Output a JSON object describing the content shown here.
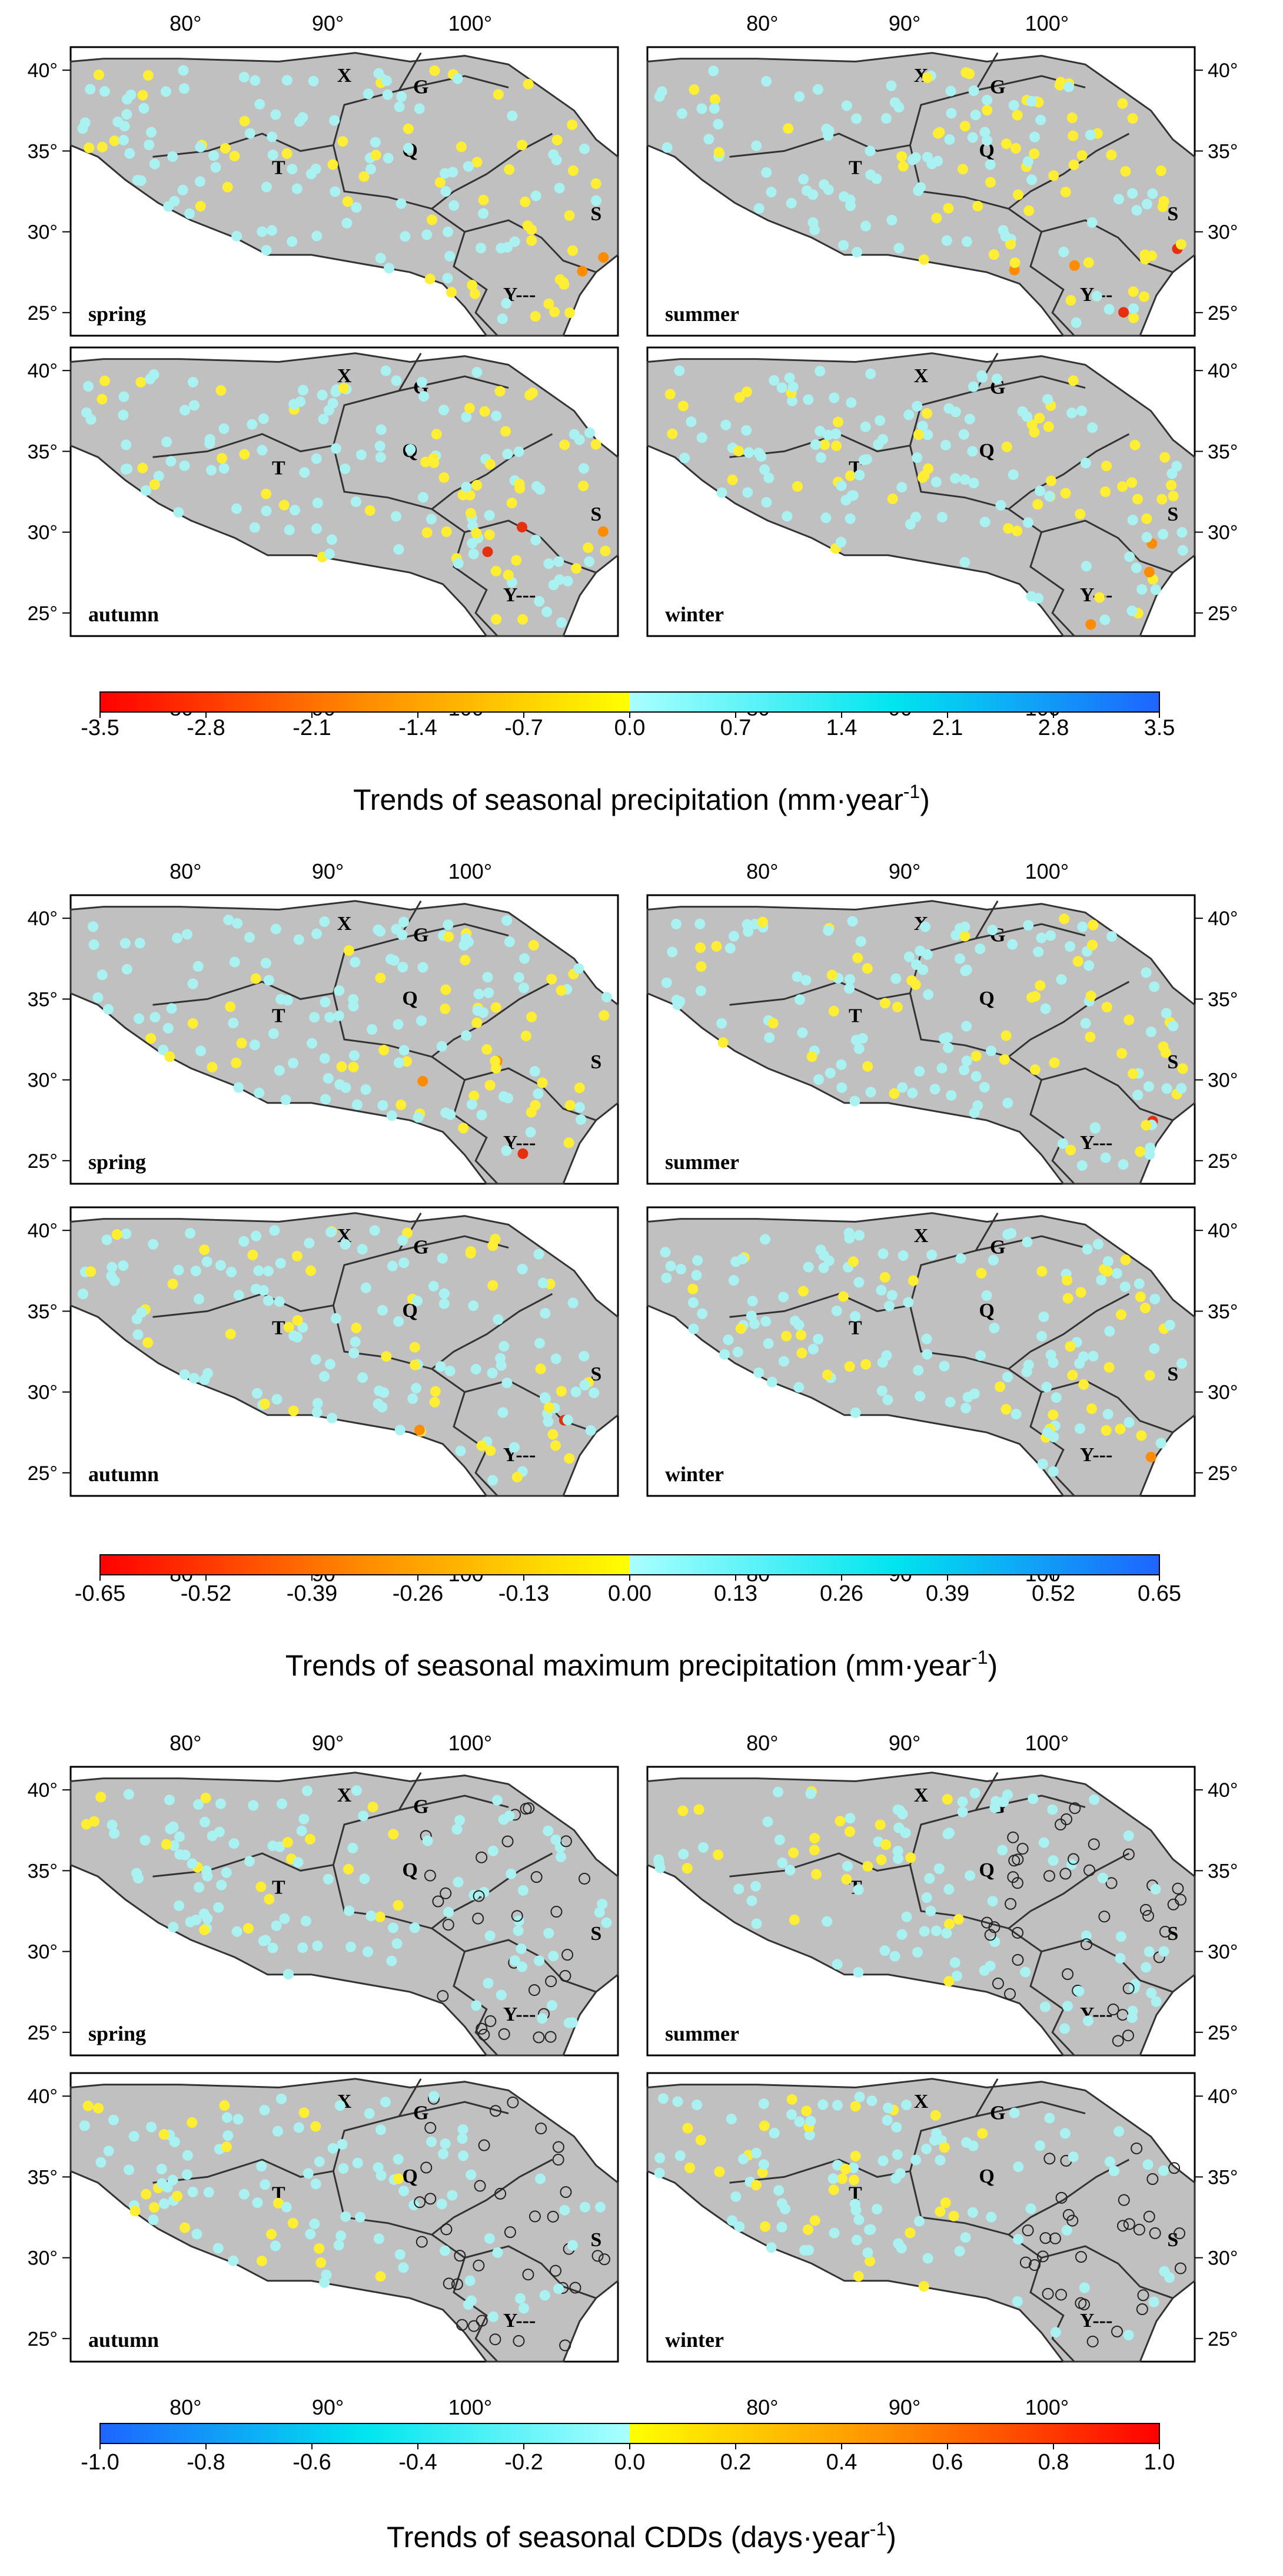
{
  "map_labels": {
    "X": "X",
    "G": "G",
    "Q": "Q",
    "T": "T",
    "S": "S",
    "Y": "Y---"
  },
  "lon_ticks": [
    "80°",
    "90°",
    "100°"
  ],
  "lat_ticks": [
    "25°",
    "30°",
    "35°",
    "40°"
  ],
  "panels": [
    {
      "title": "Trends of seasonal precipitation (mm·year-1)",
      "title_main": "Trends of seasonal precipitation (mm·year",
      "title_sup": "-1",
      "title_end": ")",
      "colorbar_ticks": [
        "-3.5",
        "-2.8",
        "-2.1",
        "-1.4",
        "-0.7",
        "0.0",
        "0.7",
        "1.4",
        "2.1",
        "2.8",
        "3.5"
      ],
      "colorbar_colors": [
        "#ff0000",
        "#ff8c00",
        "#ffff00",
        "#aaffff",
        "#00e5ee",
        "#1e64ff"
      ],
      "seasons": [
        "spring",
        "summer",
        "autumn",
        "winter"
      ]
    },
    {
      "title": "Trends of seasonal maximum precipitation (mm·year-1)",
      "title_main": "Trends of seasonal maximum precipitation (mm·year",
      "title_sup": "-1",
      "title_end": ")",
      "colorbar_ticks": [
        "-0.65",
        "-0.52",
        "-0.39",
        "-0.26",
        "-0.13",
        "0.00",
        "0.13",
        "0.26",
        "0.39",
        "0.52",
        "0.65"
      ],
      "colorbar_colors": [
        "#ff0000",
        "#ff8c00",
        "#ffff00",
        "#aaffff",
        "#00e5ee",
        "#1e64ff"
      ],
      "seasons": [
        "spring",
        "summer",
        "autumn",
        "winter"
      ]
    },
    {
      "title": "Trends of seasonal CDDs (days·year-1)",
      "title_main": "Trends of seasonal CDDs (days·year",
      "title_sup": "-1",
      "title_end": ")",
      "colorbar_ticks": [
        "-1.0",
        "-0.8",
        "-0.6",
        "-0.4",
        "-0.2",
        "0.0",
        "0.2",
        "0.4",
        "0.6",
        "0.8",
        "1.0"
      ],
      "colorbar_colors": [
        "#1e64ff",
        "#00e5ee",
        "#aaffff",
        "#ffff00",
        "#ff8c00",
        "#ff0000"
      ],
      "seasons": [
        "spring",
        "summer",
        "autumn",
        "winter"
      ]
    }
  ],
  "colors": {
    "land": "#c0c0c0",
    "border": "#333333",
    "yellow_dot": "#ffee33",
    "cyan_dot": "#aaf2f2",
    "orange_dot": "#ff8c00",
    "red_dot": "#e53010",
    "blue_dot": "#1e64ff"
  }
}
